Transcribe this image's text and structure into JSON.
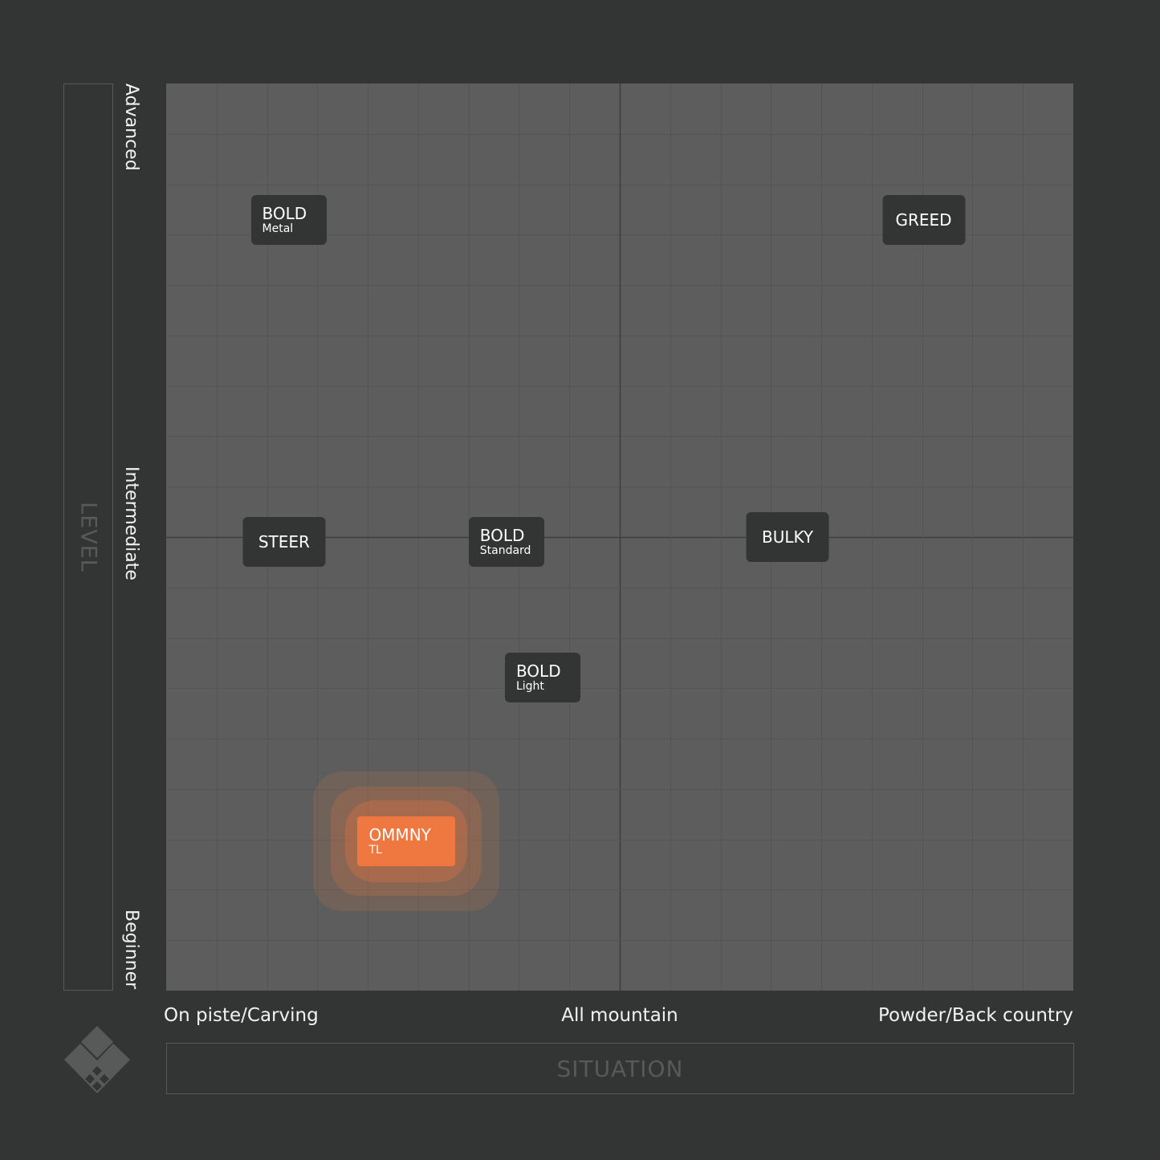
{
  "axes": {
    "y_title": "LEVEL",
    "x_title": "SITUATION"
  },
  "chart_data": {
    "type": "scatter",
    "x_axis": {
      "title": "SITUATION",
      "ticks": [
        "On piste/Carving",
        "All mountain",
        "Powder/Back country"
      ],
      "range": [
        -1,
        1
      ]
    },
    "y_axis": {
      "title": "LEVEL",
      "ticks": [
        "Beginner",
        "Intermediate",
        "Advanced"
      ],
      "range": [
        -1,
        1
      ]
    },
    "grid": true,
    "points": [
      {
        "label": "BOLD",
        "sublabel": "Metal",
        "x": -0.73,
        "y": 0.7
      },
      {
        "label": "GREED",
        "sublabel": "",
        "x": 0.67,
        "y": 0.7
      },
      {
        "label": "STEER",
        "sublabel": "",
        "x": -0.74,
        "y": -0.01
      },
      {
        "label": "BOLD",
        "sublabel": "Standard",
        "x": -0.25,
        "y": -0.01
      },
      {
        "label": "BULKY",
        "sublabel": "",
        "x": 0.37,
        "y": 0.0
      },
      {
        "label": "BOLD",
        "sublabel": "Light",
        "x": -0.17,
        "y": -0.31
      },
      {
        "label": "OMMNY",
        "sublabel": "TL",
        "x": -0.47,
        "y": -0.67,
        "highlight": true
      }
    ],
    "colors": {
      "background": "#333534",
      "plot": "#5d5d5d",
      "tag": "#333534",
      "highlight": "#ef7840"
    }
  }
}
